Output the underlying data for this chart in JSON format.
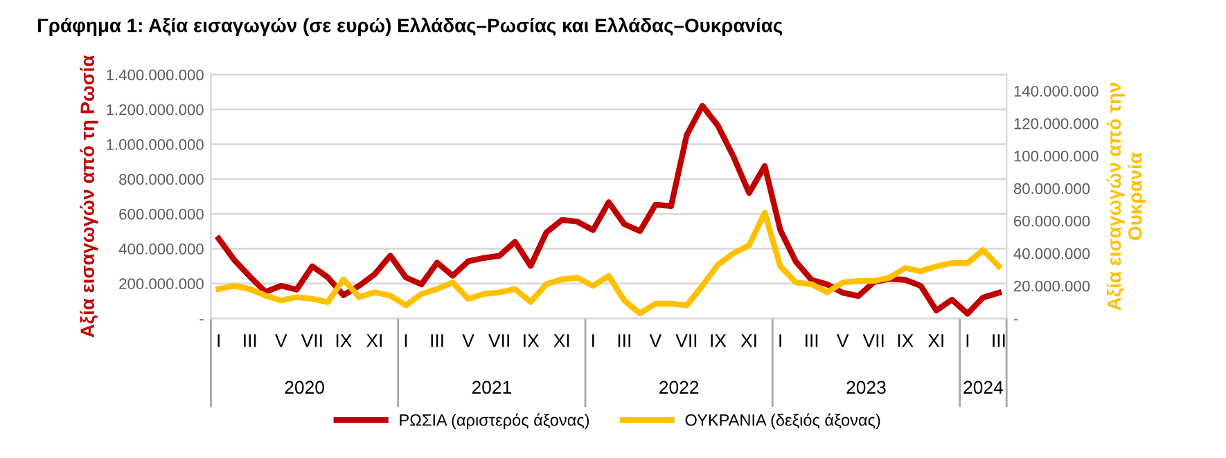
{
  "chart_data": {
    "type": "line",
    "title": "Γράφημα 1: Αξία εισαγωγών (σε ευρώ) Ελλάδας–Ρωσίας και Ελλάδας–Ουκρανίας",
    "ylabel": "Αξία εισαγωγών από τη Ρωσία",
    "y2label": "Αξία εισαγωγών από την\nΟυκρανία",
    "categories": [
      "I",
      null,
      "III",
      null,
      "V",
      null,
      "VII",
      null,
      "IX",
      null,
      "XI",
      null,
      "I",
      null,
      "III",
      null,
      "V",
      null,
      "VII",
      null,
      "IX",
      null,
      "XI",
      null,
      "I",
      null,
      "III",
      null,
      "V",
      null,
      "VII",
      null,
      "IX",
      null,
      "XI",
      null,
      "I",
      null,
      "III",
      null,
      "V",
      null,
      "VII",
      null,
      "IX",
      null,
      "XI",
      null,
      "I",
      null,
      "III"
    ],
    "annotations": [
      "2020",
      "2021",
      "2022",
      "2023",
      "2024"
    ],
    "series": [
      {
        "name": "ΡΩΣΙΑ (αριστερός άξονας)",
        "color": "#c00000",
        "values": [
          458000000,
          335000000,
          240000000,
          152000000,
          187000000,
          165000000,
          299000000,
          235000000,
          133000000,
          187000000,
          253000000,
          360000000,
          235000000,
          195000000,
          320000000,
          245000000,
          328000000,
          347000000,
          360000000,
          440000000,
          301000000,
          493000000,
          565000000,
          555000000,
          507000000,
          667000000,
          541000000,
          501000000,
          653000000,
          645000000,
          1053000000,
          1221000000,
          1107000000,
          928000000,
          720000000,
          875000000,
          507000000,
          325000000,
          221000000,
          195000000,
          147000000,
          128000000,
          208000000,
          227000000,
          221000000,
          187000000,
          45000000,
          107000000,
          27000000,
          120000000,
          147000000
        ]
      },
      {
        "name": "ΟΥΚΡΑΝΙΑ (δεξιός άξονας)",
        "color": "#ffc000",
        "axis": "y2",
        "values": [
          18000000,
          20000000,
          18000000,
          14000000,
          11000000,
          13000000,
          12000000,
          10000000,
          24000000,
          13000000,
          16000000,
          14000000,
          8000000,
          15000000,
          18000000,
          22000000,
          12000000,
          15000000,
          16000000,
          18000000,
          10000000,
          21000000,
          24000000,
          25000000,
          20000000,
          26000000,
          11000000,
          3000000,
          9000000,
          9000000,
          8000000,
          20000000,
          33000000,
          40000000,
          45000000,
          65000000,
          32000000,
          22000000,
          21000000,
          16000000,
          22000000,
          23000000,
          23000000,
          25000000,
          31000000,
          29000000,
          32000000,
          34000000,
          34000000,
          42000000,
          32000000
        ]
      }
    ],
    "ylim": [
      0,
      1400000000
    ],
    "yticks": [
      {
        "value": 0,
        "label": "-"
      },
      {
        "value": 200000000,
        "label": "200.000.000"
      },
      {
        "value": 400000000,
        "label": "400.000.000"
      },
      {
        "value": 600000000,
        "label": "600.000.000"
      },
      {
        "value": 800000000,
        "label": "800.000.000"
      },
      {
        "value": 1000000000,
        "label": "1.000.000.000"
      },
      {
        "value": 1200000000,
        "label": "1.200.000.000"
      },
      {
        "value": 1400000000,
        "label": "1.400.000.000"
      }
    ],
    "y2lim": [
      0,
      150000000
    ],
    "y2ticks": [
      {
        "value": 0,
        "label": "-"
      },
      {
        "value": 20000000,
        "label": "20.000.000"
      },
      {
        "value": 40000000,
        "label": "40.000.000"
      },
      {
        "value": 60000000,
        "label": "60.000.000"
      },
      {
        "value": 80000000,
        "label": "80.000.000"
      },
      {
        "value": 100000000,
        "label": "100.000.000"
      },
      {
        "value": 120000000,
        "label": "120.000.000"
      },
      {
        "value": 140000000,
        "label": "140.000.000"
      }
    ],
    "grid": "y",
    "legend": "bottom",
    "marker": "none",
    "line_style": "solid"
  }
}
